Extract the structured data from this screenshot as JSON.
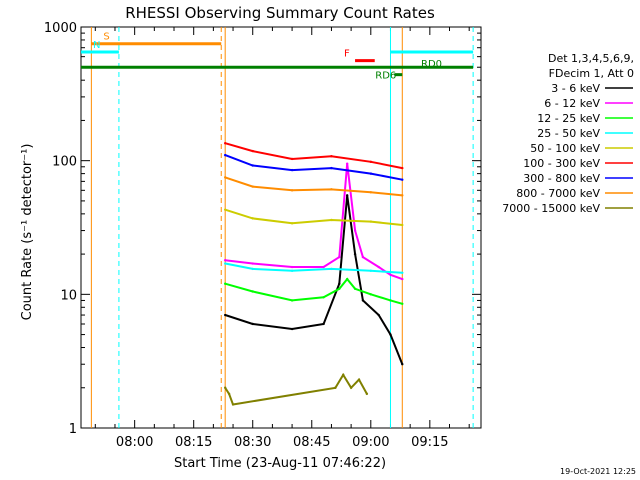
{
  "chart_data": {
    "type": "line",
    "title": "RHESSI Observing Summary Count Rates",
    "xlabel": "Start Time (23-Aug-11 07:46:22)",
    "ylabel": "Count Rate (s⁻¹ detector⁻¹)",
    "yscale": "log",
    "ylim": [
      1,
      1000
    ],
    "xlim": [
      "07:46:22",
      "09:28:00"
    ],
    "x_ticks": [
      "08:00",
      "08:15",
      "08:30",
      "08:45",
      "09:00",
      "09:15"
    ],
    "y_ticks": [
      "1",
      "10",
      "100",
      "1000"
    ],
    "grid": false,
    "legend_position": "right",
    "legend_header": [
      "Det 1,3,4,5,6,9,",
      "FDecim 1, Att 0"
    ],
    "timestamp": "19-Oct-2021 12:25",
    "series": [
      {
        "name": "3 - 6 keV",
        "color": "#000000",
        "x": [
          "08:23",
          "08:30",
          "08:40",
          "08:48",
          "08:52",
          "08:54",
          "08:56",
          "08:58",
          "09:02",
          "09:05",
          "09:08"
        ],
        "values": [
          7,
          6,
          5.5,
          6,
          12,
          55,
          20,
          9,
          7,
          5,
          3
        ]
      },
      {
        "name": "6 - 12 keV",
        "color": "#ff00ff",
        "x": [
          "08:23",
          "08:30",
          "08:40",
          "08:48",
          "08:52",
          "08:54",
          "08:56",
          "08:58",
          "09:02",
          "09:05",
          "09:08"
        ],
        "values": [
          18,
          17,
          16,
          16,
          19,
          95,
          30,
          19,
          16,
          14,
          13
        ]
      },
      {
        "name": "12 - 25 keV",
        "color": "#00ff00",
        "x": [
          "08:23",
          "08:30",
          "08:40",
          "08:48",
          "08:52",
          "08:54",
          "08:56",
          "09:00",
          "09:05",
          "09:08"
        ],
        "values": [
          12,
          10.5,
          9,
          9.5,
          11,
          13,
          11,
          10,
          9,
          8.5
        ]
      },
      {
        "name": "25 - 50 keV",
        "color": "#00ffff",
        "x": [
          "08:23",
          "08:30",
          "08:40",
          "08:50",
          "09:00",
          "09:08"
        ],
        "values": [
          17,
          15.5,
          15,
          15.5,
          15,
          14.5
        ]
      },
      {
        "name": "50 - 100 keV",
        "color": "#cccc00",
        "x": [
          "08:23",
          "08:30",
          "08:40",
          "08:50",
          "09:00",
          "09:08"
        ],
        "values": [
          43,
          37,
          34,
          36,
          35,
          33
        ]
      },
      {
        "name": "100 - 300 keV",
        "color": "#ff0000",
        "x": [
          "08:23",
          "08:30",
          "08:40",
          "08:50",
          "09:00",
          "09:08"
        ],
        "values": [
          135,
          118,
          103,
          108,
          98,
          88
        ]
      },
      {
        "name": "300 - 800 keV",
        "color": "#0000ff",
        "x": [
          "08:23",
          "08:30",
          "08:40",
          "08:50",
          "09:00",
          "09:08"
        ],
        "values": [
          110,
          92,
          85,
          88,
          80,
          72
        ]
      },
      {
        "name": "800 - 7000 keV",
        "color": "#ff8c00",
        "x": [
          "08:23",
          "08:30",
          "08:40",
          "08:50",
          "09:00",
          "09:08"
        ],
        "values": [
          75,
          64,
          60,
          61,
          58,
          55
        ]
      },
      {
        "name": "7000 - 15000 keV",
        "color": "#808000",
        "x": [
          "08:23",
          "08:24",
          "08:25",
          "08:51",
          "08:53",
          "08:55",
          "08:57",
          "08:59"
        ],
        "values": [
          2,
          1.8,
          1.5,
          2,
          2.5,
          2,
          2.3,
          1.8
        ]
      }
    ],
    "flag_bars": [
      {
        "label": "S",
        "color": "#ff8c00",
        "start": "07:49",
        "end": "08:22",
        "level": 750
      },
      {
        "label": "N",
        "color": "#00ffff",
        "start": "07:46:22",
        "end": "07:56",
        "level": 650
      },
      {
        "label": "",
        "color": "#00ffff",
        "start": "09:05",
        "end": "09:26",
        "level": 650
      },
      {
        "label": "F",
        "color": "#ff0000",
        "start": "08:56",
        "end": "09:01",
        "level": 560
      },
      {
        "label": "RD0",
        "color": "#008000",
        "start": "07:46:22",
        "end": "09:26",
        "level": 500
      },
      {
        "label": "RD6",
        "color": "#008000",
        "start": "09:06",
        "end": "09:08",
        "level": 440
      }
    ],
    "vlines": [
      {
        "x": "07:49",
        "color": "#ff8c00",
        "style": "solid"
      },
      {
        "x": "07:56",
        "color": "#00ffff",
        "style": "dashed"
      },
      {
        "x": "08:22",
        "color": "#ff8c00",
        "style": "dashed"
      },
      {
        "x": "08:23",
        "color": "#ff8c00",
        "style": "solid"
      },
      {
        "x": "09:05",
        "color": "#00ffff",
        "style": "solid"
      },
      {
        "x": "09:08",
        "color": "#ff8c00",
        "style": "solid"
      },
      {
        "x": "09:26",
        "color": "#00ffff",
        "style": "dashed"
      }
    ]
  }
}
